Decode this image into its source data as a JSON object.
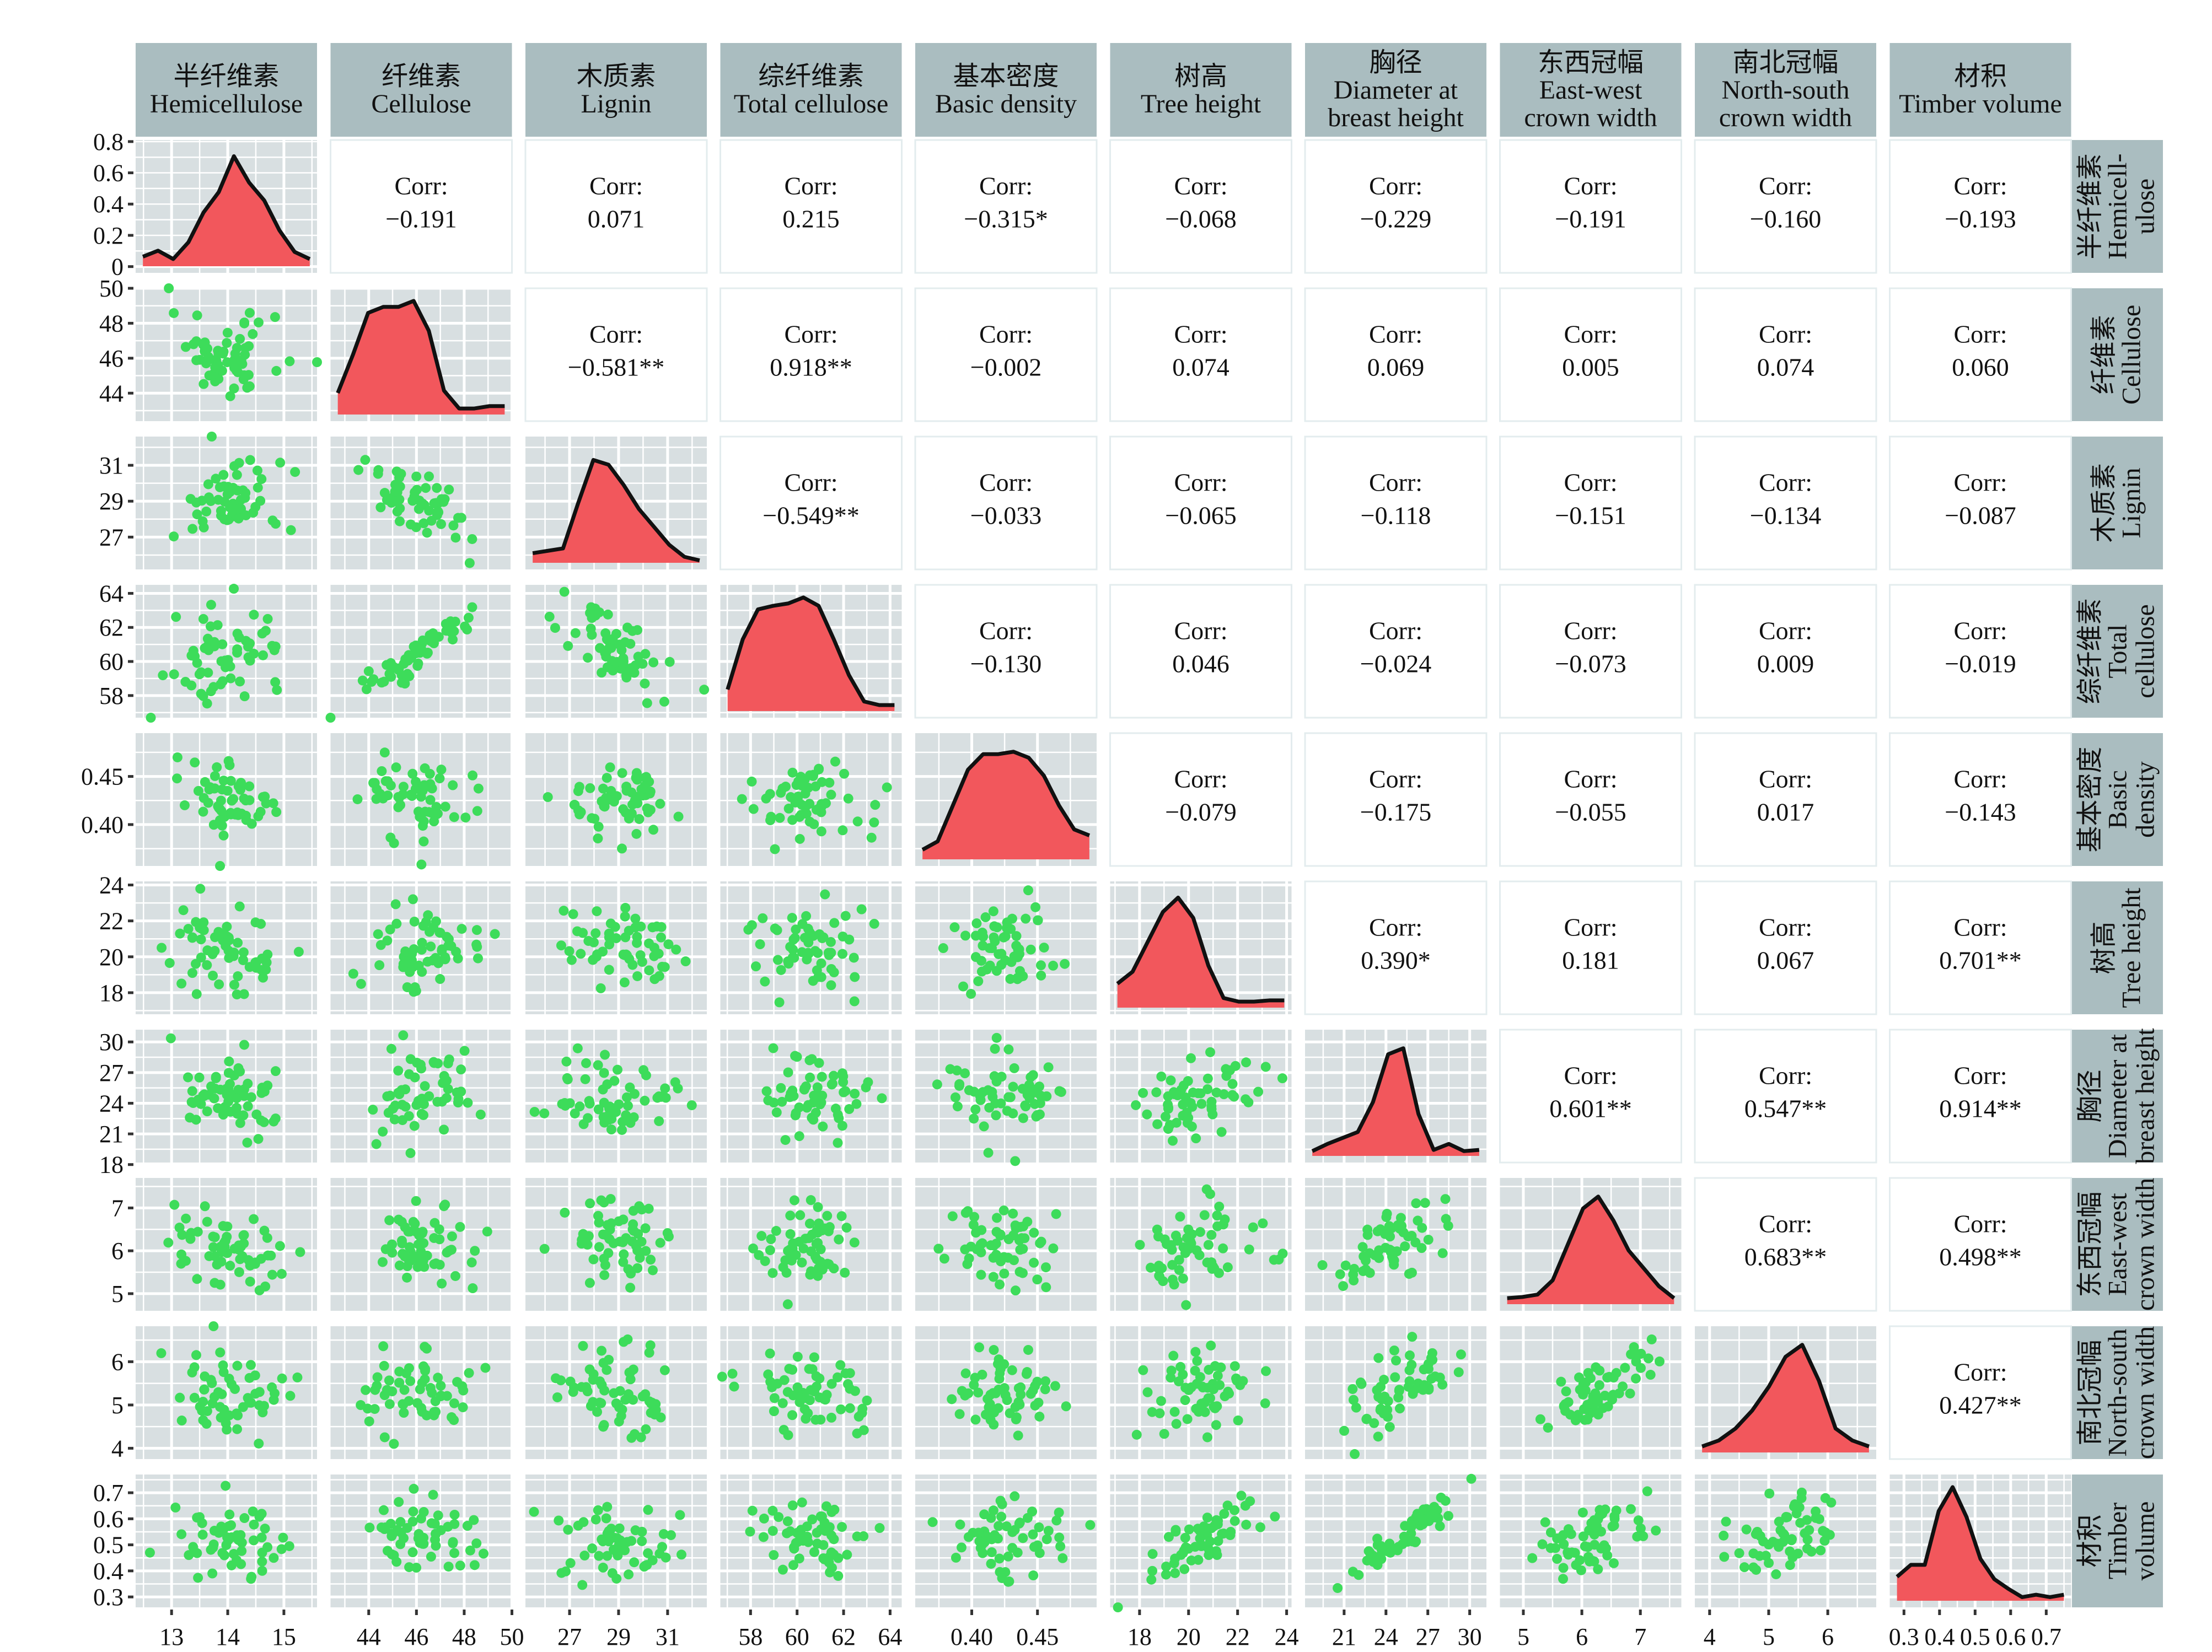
{
  "chart_data": {
    "type": "scatter-matrix",
    "colors": {
      "points": "#3ddc5a",
      "density_fill": "#f2575c",
      "density_line": "#111111",
      "panel_bg": "#d8dfe1",
      "strip_bg": "#aabdc0",
      "grid": "#ffffff"
    },
    "corr_label": "Corr:",
    "variables": [
      {
        "top": [
          "半纤维素",
          "Hemicellulose"
        ],
        "side": [
          "半纤维素",
          "Hemicell-",
          "ulose"
        ],
        "range": [
          12.36,
          15.59
        ],
        "x_ticks": [
          "13",
          "14",
          "15"
        ],
        "y_ticks": [],
        "density_shape": [
          0.08,
          0.13,
          0.06,
          0.2,
          0.45,
          0.62,
          0.92,
          0.7,
          0.55,
          0.3,
          0.12,
          0.06
        ]
      },
      {
        "top": [
          "纤维素",
          "Cellulose"
        ],
        "side": [
          "纤维素",
          "Cellulose"
        ],
        "range": [
          42.4,
          50.0
        ],
        "x_ticks": [
          "44",
          "46",
          "48",
          "50"
        ],
        "y_ticks": [
          "44",
          "46",
          "48",
          "50"
        ],
        "density_shape": [
          0.18,
          0.5,
          0.85,
          0.9,
          0.9,
          0.95,
          0.7,
          0.2,
          0.05,
          0.05,
          0.07,
          0.07
        ]
      },
      {
        "top": [
          "木质素",
          "Lignin"
        ],
        "side": [
          "木质素",
          "Lignin"
        ],
        "range": [
          25.2,
          32.6
        ],
        "x_ticks": [
          "27",
          "29",
          "31"
        ],
        "y_ticks": [
          "27",
          "29",
          "31"
        ],
        "density_shape": [
          0.08,
          0.1,
          0.12,
          0.5,
          0.86,
          0.82,
          0.65,
          0.45,
          0.3,
          0.15,
          0.05,
          0.02
        ]
      },
      {
        "top": [
          "综纤维素",
          "Total cellulose"
        ],
        "side": [
          "综纤维素",
          "Total",
          "cellulose"
        ],
        "range": [
          56.7,
          64.5
        ],
        "x_ticks": [
          "58",
          "60",
          "62",
          "64"
        ],
        "y_ticks": [
          "58",
          "60",
          "62",
          "64"
        ],
        "density_shape": [
          0.18,
          0.6,
          0.85,
          0.88,
          0.9,
          0.95,
          0.88,
          0.6,
          0.3,
          0.08,
          0.05,
          0.05
        ]
      },
      {
        "top": [
          "基本密度",
          "Basic density"
        ],
        "side": [
          "基本密度",
          "Basic",
          "density"
        ],
        "range": [
          0.357,
          0.495
        ],
        "x_ticks": [
          "0.40",
          "0.45"
        ],
        "y_ticks": [
          "0.40",
          "0.45"
        ],
        "density_shape": [
          0.08,
          0.15,
          0.45,
          0.75,
          0.88,
          0.88,
          0.9,
          0.85,
          0.7,
          0.45,
          0.25,
          0.2
        ]
      },
      {
        "top": [
          "树高",
          "Tree height"
        ],
        "side": [
          "树高",
          "Tree height"
        ],
        "range": [
          16.8,
          24.2
        ],
        "x_ticks": [
          "18",
          "20",
          "22",
          "24"
        ],
        "y_ticks": [
          "18",
          "20",
          "22",
          "24"
        ],
        "density_shape": [
          0.2,
          0.3,
          0.55,
          0.8,
          0.92,
          0.75,
          0.35,
          0.08,
          0.05,
          0.05,
          0.06,
          0.06
        ]
      },
      {
        "top": [
          "胸径",
          "Diameter at",
          "breast height"
        ],
        "side": [
          "胸径",
          "Diameter at",
          "breast height"
        ],
        "range": [
          18.2,
          31.2
        ],
        "x_ticks": [
          "21",
          "24",
          "27",
          "30"
        ],
        "y_ticks": [
          "18",
          "21",
          "24",
          "27",
          "30"
        ],
        "density_shape": [
          0.04,
          0.1,
          0.15,
          0.2,
          0.45,
          0.85,
          0.9,
          0.35,
          0.05,
          0.1,
          0.04,
          0.05
        ]
      },
      {
        "top": [
          "东西冠幅",
          "East-west",
          "crown width"
        ],
        "side": [
          "东西冠幅",
          "East-west",
          "crown width"
        ],
        "range": [
          4.6,
          7.7
        ],
        "x_ticks": [
          "5",
          "6",
          "7"
        ],
        "y_ticks": [
          "5",
          "6",
          "7"
        ],
        "density_shape": [
          0.05,
          0.06,
          0.08,
          0.2,
          0.5,
          0.8,
          0.9,
          0.7,
          0.45,
          0.3,
          0.15,
          0.05
        ]
      },
      {
        "top": [
          "南北冠幅",
          "North-south",
          "crown width"
        ],
        "side": [
          "南北冠幅",
          "North-south",
          "crown width"
        ],
        "range": [
          3.75,
          6.82
        ],
        "x_ticks": [
          "4",
          "5",
          "6"
        ],
        "y_ticks": [
          "4",
          "5",
          "6"
        ],
        "density_shape": [
          0.05,
          0.1,
          0.2,
          0.35,
          0.55,
          0.8,
          0.9,
          0.6,
          0.2,
          0.1,
          0.05
        ]
      },
      {
        "top": [
          "材积",
          "Timber volume"
        ],
        "side": [
          "材积",
          "Timber",
          "volume"
        ],
        "range": [
          0.26,
          0.77
        ],
        "x_ticks": [
          "0.3",
          "0.4",
          "0.5",
          "0.6",
          "0.7"
        ],
        "y_ticks": [
          "0.3",
          "0.4",
          "0.5",
          "0.6",
          "0.7"
        ],
        "density_shape": [
          0.2,
          0.3,
          0.3,
          0.75,
          0.95,
          0.7,
          0.35,
          0.18,
          0.1,
          0.03,
          0.05,
          0.03,
          0.05
        ]
      }
    ],
    "density_axis": {
      "range": [
        -0.04,
        0.81
      ],
      "ticks": [
        "0",
        "0.2",
        "0.4",
        "0.6",
        "0.8"
      ]
    },
    "correlations": [
      [
        "−0.191",
        "0.071",
        "0.215",
        "−0.315*",
        "−0.068",
        "−0.229",
        "−0.191",
        "−0.160",
        "−0.193"
      ],
      [
        "−0.581**",
        "0.918**",
        "−0.002",
        "0.074",
        "0.069",
        "0.005",
        "0.074",
        "0.060"
      ],
      [
        "−0.549**",
        "−0.033",
        "−0.065",
        "−0.118",
        "−0.151",
        "−0.134",
        "−0.087"
      ],
      [
        "−0.130",
        "0.046",
        "−0.024",
        "−0.073",
        "0.009",
        "−0.019"
      ],
      [
        "−0.079",
        "−0.175",
        "−0.055",
        "0.017",
        "−0.143"
      ],
      [
        "0.390*",
        "0.181",
        "0.067",
        "0.701**"
      ],
      [
        "0.601**",
        "0.547**",
        "0.914**"
      ],
      [
        "0.683**",
        "0.498**"
      ],
      [
        "0.427**"
      ]
    ]
  }
}
